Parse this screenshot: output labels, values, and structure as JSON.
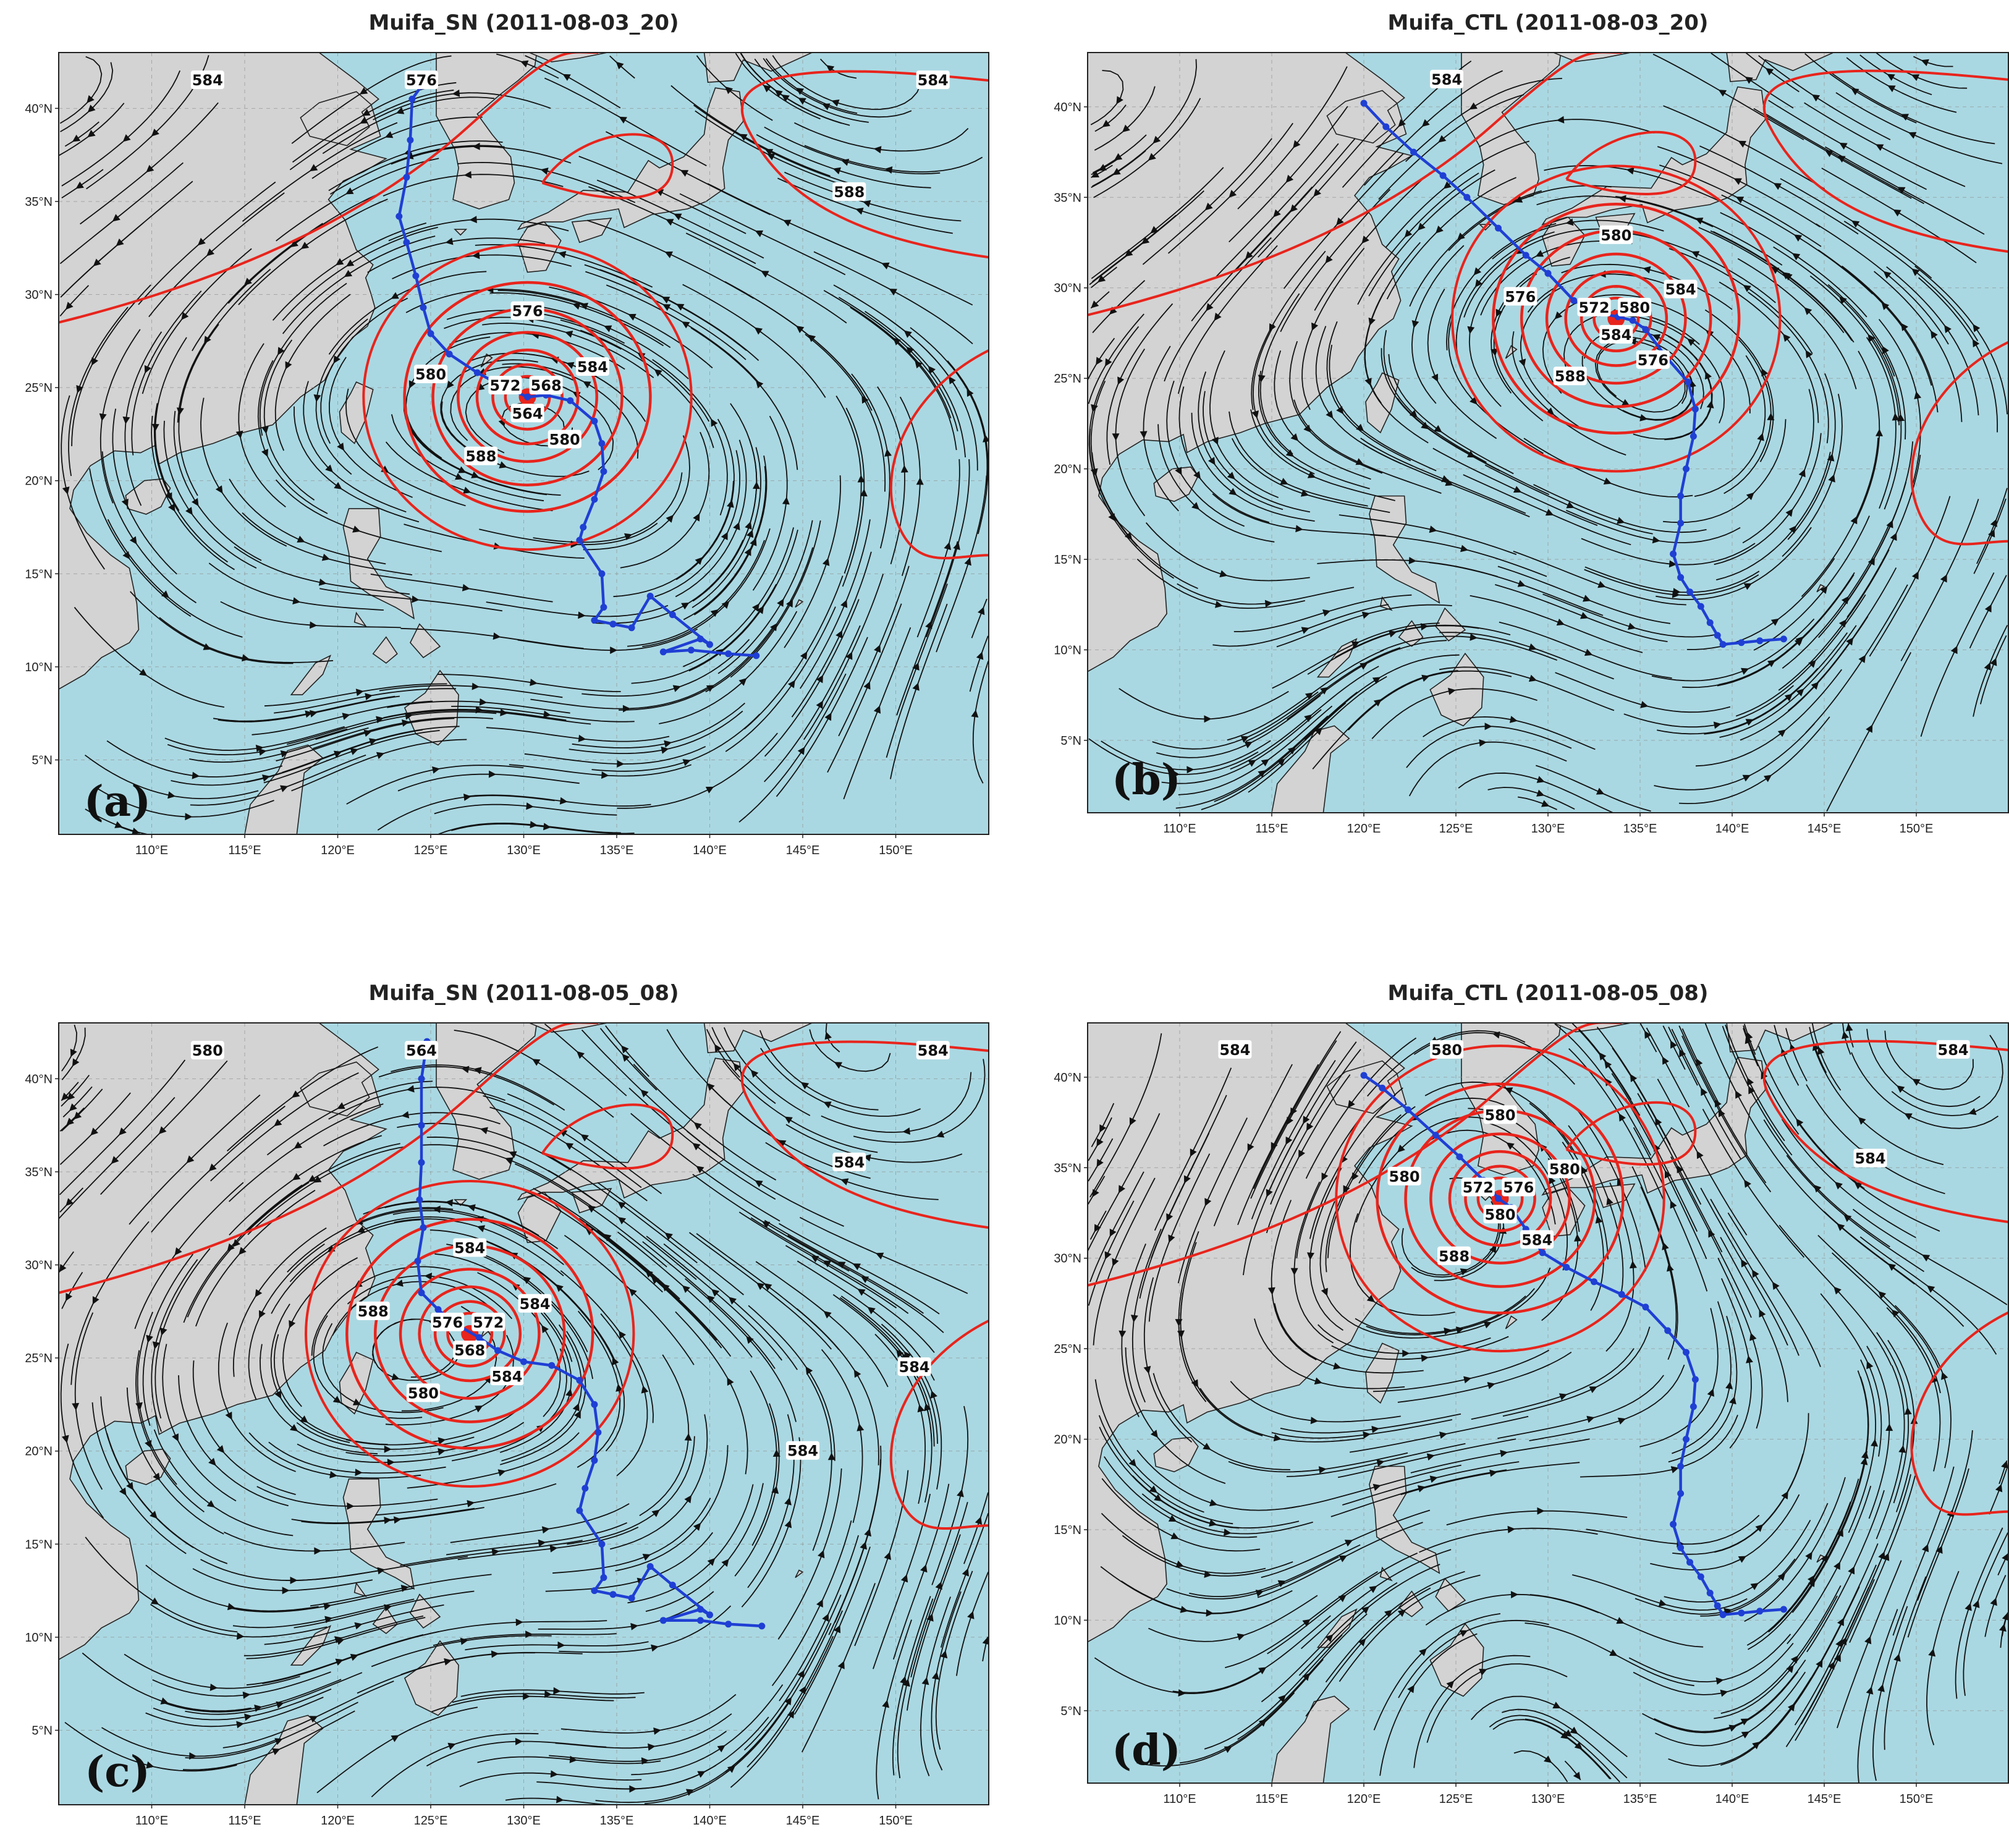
{
  "figure": {
    "colors": {
      "ocean": "#aad8e2",
      "land": "#d3d3d3",
      "contour": "#e8241c",
      "track": "#1f3fd4",
      "streamline": "#111111"
    },
    "layers": [
      "streamlines",
      "500 hPa geopotential height contours",
      "typhoon track"
    ],
    "lon_ticks": [
      "110°E",
      "115°E",
      "120°E",
      "125°E",
      "130°E",
      "135°E",
      "140°E",
      "145°E",
      "150°E"
    ],
    "lat_ticks": [
      "5°N",
      "10°N",
      "15°N",
      "20°N",
      "25°N",
      "30°N",
      "35°N",
      "40°N"
    ],
    "extent": {
      "lon": [
        105,
        155
      ],
      "lat": [
        1,
        43
      ]
    }
  },
  "panels": [
    {
      "id": "a",
      "label": "(a)",
      "title": "Muifa_SN (2011-08-03_20)",
      "center": {
        "lon": 130.2,
        "lat": 24.5
      },
      "contour_labels": [
        "576",
        "580",
        "584",
        "588",
        "580",
        "572",
        "568",
        "564",
        "576",
        "584",
        "584",
        "588"
      ],
      "track": [
        [
          142.5,
          10.6
        ],
        [
          141,
          10.7
        ],
        [
          139,
          10.9
        ],
        [
          137.5,
          10.8
        ],
        [
          139.5,
          11.5
        ],
        [
          140,
          11.2
        ],
        [
          138,
          12.8
        ],
        [
          136.8,
          13.8
        ],
        [
          135.8,
          12.1
        ],
        [
          134.8,
          12.3
        ],
        [
          133.8,
          12.5
        ],
        [
          134.3,
          13.2
        ],
        [
          134.2,
          15
        ],
        [
          133,
          16.8
        ],
        [
          133.2,
          17.5
        ],
        [
          133.8,
          19
        ],
        [
          134.3,
          20.5
        ],
        [
          134.2,
          22
        ],
        [
          133.8,
          23.2
        ],
        [
          132.5,
          24.3
        ],
        [
          131.2,
          24.6
        ],
        [
          130.2,
          24.5
        ],
        [
          128.8,
          25.1
        ],
        [
          127.5,
          25.8
        ],
        [
          126,
          26.8
        ],
        [
          125,
          27.9
        ],
        [
          124.6,
          29.3
        ],
        [
          124.2,
          31
        ],
        [
          123.7,
          32.8
        ],
        [
          123.3,
          34.2
        ],
        [
          123.7,
          36.3
        ],
        [
          123.9,
          38.3
        ],
        [
          124,
          40.5
        ],
        [
          124.5,
          41.2
        ]
      ]
    },
    {
      "id": "b",
      "label": "(b)",
      "title": "Muifa_CTL (2011-08-03_20)",
      "center": {
        "lon": 133.7,
        "lat": 28.3
      },
      "contour_labels": [
        "580",
        "576",
        "584",
        "588",
        "576",
        "572",
        "580",
        "584",
        "584"
      ],
      "track": [
        [
          142.8,
          10.6
        ],
        [
          141.5,
          10.5
        ],
        [
          140.5,
          10.4
        ],
        [
          139.5,
          10.3
        ],
        [
          139.2,
          10.8
        ],
        [
          138.8,
          11.5
        ],
        [
          138.3,
          12.4
        ],
        [
          137.7,
          13.2
        ],
        [
          137.2,
          14
        ],
        [
          136.8,
          15.3
        ],
        [
          137.2,
          17
        ],
        [
          137.2,
          18.5
        ],
        [
          137.5,
          20
        ],
        [
          137.9,
          21.8
        ],
        [
          138,
          23.3
        ],
        [
          137.6,
          24.8
        ],
        [
          136.4,
          26.2
        ],
        [
          135.3,
          27.7
        ],
        [
          134.6,
          28.2
        ],
        [
          133.8,
          28.4
        ],
        [
          132.8,
          28.6
        ],
        [
          131.4,
          29.3
        ],
        [
          130,
          30.8
        ],
        [
          128.8,
          31.8
        ],
        [
          127.3,
          33.3
        ],
        [
          125.6,
          35
        ],
        [
          124.3,
          36.2
        ],
        [
          122.7,
          37.5
        ],
        [
          121.2,
          38.9
        ],
        [
          120,
          40.2
        ]
      ]
    },
    {
      "id": "c",
      "label": "(c)",
      "title": "Muifa_SN (2011-08-05_08)",
      "center": {
        "lon": 127.1,
        "lat": 26.3
      },
      "contour_labels": [
        "584",
        "588",
        "584",
        "580",
        "584",
        "576",
        "572",
        "568",
        "564",
        "580",
        "584",
        "584",
        "584",
        "584"
      ],
      "track": [
        [
          142.8,
          10.6
        ],
        [
          141,
          10.7
        ],
        [
          139.5,
          10.9
        ],
        [
          137.5,
          10.9
        ],
        [
          139.5,
          11.5
        ],
        [
          140,
          11.2
        ],
        [
          138,
          12.8
        ],
        [
          136.8,
          13.8
        ],
        [
          135.8,
          12.1
        ],
        [
          134.8,
          12.3
        ],
        [
          133.8,
          12.5
        ],
        [
          134.3,
          13.2
        ],
        [
          134.2,
          15
        ],
        [
          133,
          16.8
        ],
        [
          133.3,
          18
        ],
        [
          133.8,
          19.5
        ],
        [
          134,
          21
        ],
        [
          133.8,
          22.5
        ],
        [
          133,
          23.8
        ],
        [
          131.5,
          24.6
        ],
        [
          130,
          24.8
        ],
        [
          128.6,
          25.4
        ],
        [
          127.6,
          26.1
        ],
        [
          126.2,
          26.9
        ],
        [
          125.4,
          27.6
        ],
        [
          124.5,
          28.5
        ],
        [
          124.3,
          30.2
        ],
        [
          124.6,
          32
        ],
        [
          124.4,
          33.5
        ],
        [
          124.5,
          35.5
        ],
        [
          124.5,
          37.5
        ],
        [
          124.5,
          40
        ],
        [
          124.8,
          42
        ]
      ]
    },
    {
      "id": "d",
      "label": "(d)",
      "title": "Muifa_CTL (2011-08-05_08)",
      "center": {
        "lon": 127.4,
        "lat": 33.3
      },
      "contour_labels": [
        "580",
        "580",
        "580",
        "588",
        "584",
        "572",
        "576",
        "580",
        "580",
        "584",
        "584",
        "584"
      ],
      "track": [
        [
          142.8,
          10.6
        ],
        [
          141.5,
          10.5
        ],
        [
          140.5,
          10.4
        ],
        [
          139.5,
          10.3
        ],
        [
          139.2,
          10.8
        ],
        [
          138.8,
          11.5
        ],
        [
          138.3,
          12.4
        ],
        [
          137.7,
          13.2
        ],
        [
          137.2,
          14
        ],
        [
          136.8,
          15.3
        ],
        [
          137.2,
          17
        ],
        [
          137.2,
          18.5
        ],
        [
          137.5,
          20
        ],
        [
          137.9,
          21.8
        ],
        [
          138,
          23.3
        ],
        [
          137.5,
          24.8
        ],
        [
          136.5,
          26
        ],
        [
          135.3,
          27.3
        ],
        [
          134,
          28
        ],
        [
          132.5,
          28.7
        ],
        [
          131,
          29.5
        ],
        [
          129.7,
          30.3
        ],
        [
          128.8,
          31.6
        ],
        [
          128,
          32.8
        ],
        [
          127.3,
          33.3
        ],
        [
          126.5,
          34.3
        ],
        [
          125.2,
          35.6
        ],
        [
          123.9,
          36.8
        ],
        [
          122.4,
          38.2
        ],
        [
          121,
          39.4
        ],
        [
          120,
          40.1
        ]
      ]
    }
  ]
}
